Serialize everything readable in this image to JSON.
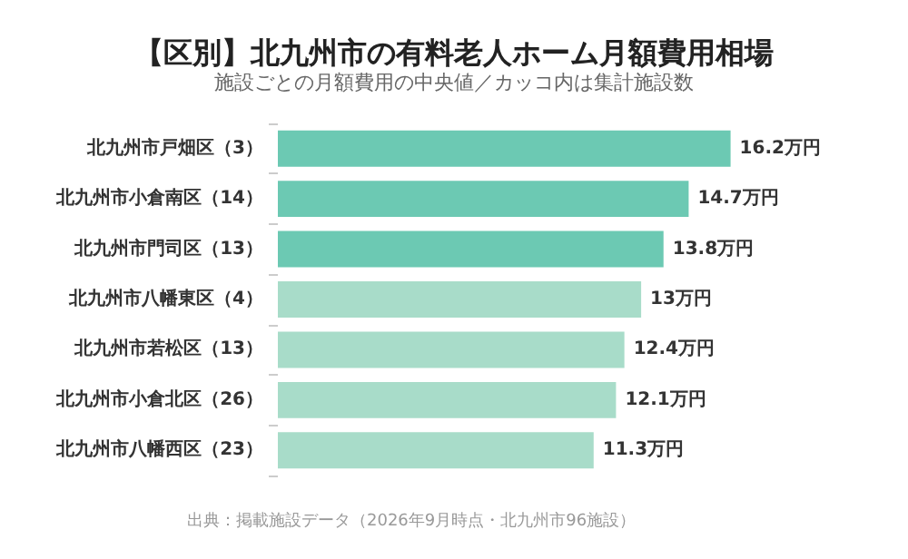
{
  "chart_data": {
    "type": "bar",
    "orientation": "horizontal",
    "title": "【区別】北九州市の有料老人ホーム月額費用相場",
    "subtitle": "施設ごとの月額費用の中央値／カッコ内は集計施設数",
    "categories": [
      "北九州市戸畑区（3）",
      "北九州市小倉南区（14）",
      "北九州市門司区（13）",
      "北九州市八幡東区（4）",
      "北九州市若松区（13）",
      "北九州市小倉北区（26）",
      "北九州市八幡西区（23）"
    ],
    "values": [
      16.2,
      14.7,
      13.8,
      13,
      12.4,
      12.1,
      11.3
    ],
    "value_labels": [
      "16.2万円",
      "14.7万円",
      "13.8万円",
      "13万円",
      "12.4万円",
      "12.1万円",
      "11.3万円"
    ],
    "colors": [
      "#6cc9b3",
      "#6cc9b3",
      "#6cc9b3",
      "#a8dcc9",
      "#a8dcc9",
      "#a8dcc9",
      "#a8dcc9"
    ],
    "annotations": [
      "出典：掲載施設データ（2026年9月時点・北九州市96施設）"
    ]
  }
}
